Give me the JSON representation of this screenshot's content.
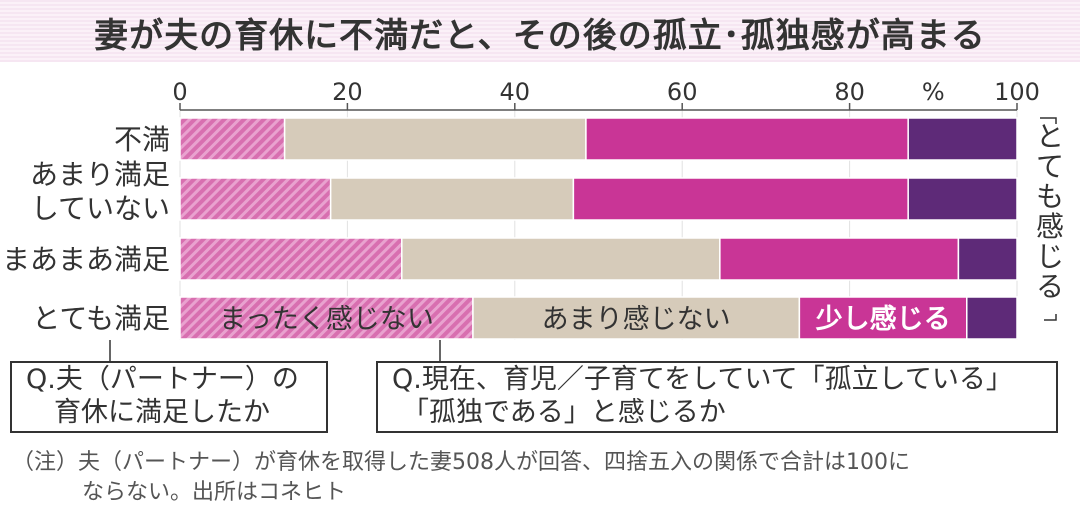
{
  "chart_data": {
    "type": "stacked-bar-horizontal",
    "title": "妻が夫の育休に不満だと、その後の孤立･孤独感が高まる",
    "categories": [
      [
        "不満"
      ],
      [
        "あまり満足",
        "していない"
      ],
      [
        "まあまあ満足"
      ],
      [
        "とても満足"
      ]
    ],
    "xlim": [
      0,
      100
    ],
    "x_ticks": [
      "0",
      "20",
      "40",
      "60",
      "80",
      "100"
    ],
    "unit_label": "%",
    "series": [
      {
        "name": "まったく感じない",
        "color": "#d86fb0",
        "pattern": "hatch",
        "values": [
          12.5,
          18,
          26.5,
          35
        ]
      },
      {
        "name": "あまり感じない",
        "color": "#d6cbba",
        "values": [
          36,
          29,
          38,
          39
        ]
      },
      {
        "name": "少し感じる",
        "color": "#c93596",
        "values": [
          38.5,
          40,
          28.5,
          20
        ]
      },
      {
        "name": "とても感じる",
        "color": "#5e2a78",
        "values": [
          13,
          13,
          7,
          6
        ]
      }
    ],
    "legend_placement": "inline-last-bar",
    "right_label": "とても感じる",
    "right_label_chars": [
      "と",
      "て",
      "も",
      "感",
      "じ",
      "る"
    ]
  },
  "question_1": {
    "lines": [
      "Q.夫（パートナー）の",
      "育休に満足したか"
    ]
  },
  "question_2": {
    "lines": [
      "Q.現在、育児／子育てをしていて「孤立している」",
      "「孤独である」と感じるか"
    ]
  },
  "note": {
    "lines": [
      "（注）夫（パートナー）が育休を取得した妻508人が回答、四捨五入の関係で合計は100に",
      "ならない。出所はコネヒト"
    ]
  }
}
